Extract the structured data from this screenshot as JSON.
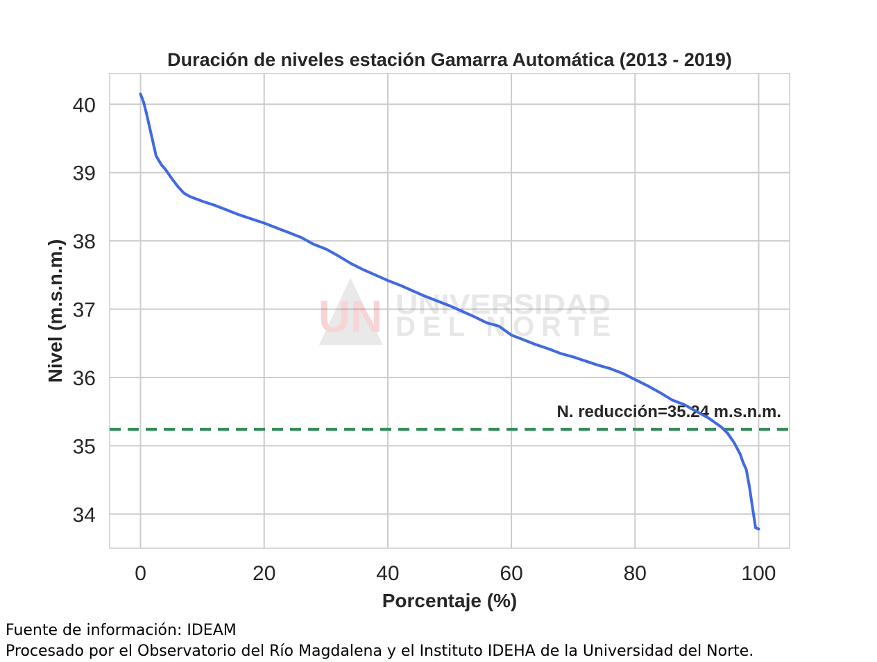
{
  "chart_data": {
    "type": "line",
    "title": "Duración de niveles estación Gamarra Automática (2013 - 2019)",
    "xlabel": "Porcentaje (%)",
    "ylabel": "Nivel (m.s.n.m.)",
    "xlim": [
      -5,
      105
    ],
    "ylim": [
      33.5,
      40.45
    ],
    "xticks": [
      0,
      20,
      40,
      60,
      80,
      100
    ],
    "yticks": [
      34,
      35,
      36,
      37,
      38,
      39,
      40
    ],
    "grid": true,
    "series": [
      {
        "color": "#4169e1",
        "x": [
          0,
          0.5,
          1,
          1.5,
          2,
          2.5,
          3,
          3.5,
          4,
          5,
          6,
          7,
          8,
          10,
          12,
          14,
          16,
          18,
          20,
          22,
          24,
          26,
          28,
          30,
          32,
          34,
          36,
          38,
          40,
          42,
          44,
          46,
          48,
          50,
          52,
          54,
          56,
          58,
          60,
          62,
          64,
          66,
          68,
          70,
          72,
          74,
          76,
          78,
          80,
          82,
          84,
          86,
          88,
          90,
          92,
          94,
          95,
          96,
          97,
          97.5,
          98,
          98.5,
          99,
          99.5,
          100
        ],
        "y": [
          40.15,
          40.03,
          39.85,
          39.65,
          39.45,
          39.25,
          39.17,
          39.1,
          39.05,
          38.92,
          38.8,
          38.7,
          38.65,
          38.58,
          38.52,
          38.45,
          38.38,
          38.32,
          38.26,
          38.19,
          38.12,
          38.05,
          37.95,
          37.88,
          37.78,
          37.67,
          37.58,
          37.5,
          37.42,
          37.35,
          37.27,
          37.19,
          37.12,
          37.05,
          36.97,
          36.89,
          36.8,
          36.75,
          36.62,
          36.55,
          36.48,
          36.42,
          36.35,
          36.3,
          36.24,
          36.18,
          36.13,
          36.06,
          35.97,
          35.88,
          35.78,
          35.67,
          35.6,
          35.5,
          35.4,
          35.27,
          35.18,
          35.05,
          34.88,
          34.75,
          34.65,
          34.4,
          34.1,
          33.8,
          33.78
        ]
      }
    ],
    "reference_line": {
      "y": 35.24,
      "label": "N. reducción=35.24 m.s.n.m.",
      "color": "#2e8b57",
      "style": "dashed"
    },
    "watermark": {
      "logo_text": "UN",
      "line1": "UNIVERSIDAD",
      "line2": "DEL NORTE"
    }
  },
  "footer": {
    "source": "Fuente de información: IDEAM",
    "processed_by": "Procesado por el Observatorio del Río Magdalena y el Instituto IDEHA de la Universidad del Norte."
  }
}
